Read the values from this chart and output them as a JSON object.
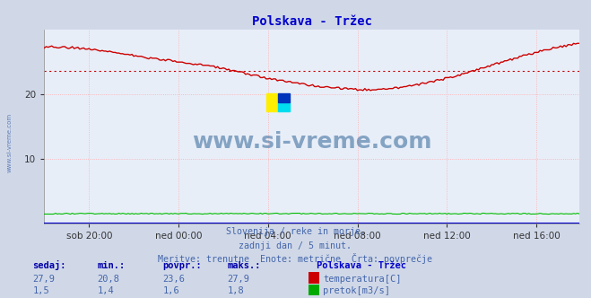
{
  "title": "Polskava - Tržec",
  "title_color": "#0000cc",
  "bg_color": "#d0d8e8",
  "plot_bg_color": "#e8eef8",
  "grid_color": "#ffaaaa",
  "xlabel_ticks": [
    "sob 20:00",
    "ned 00:00",
    "ned 04:00",
    "ned 08:00",
    "ned 12:00",
    "ned 16:00"
  ],
  "ylabel_ticks": [
    10,
    20
  ],
  "ylim": [
    0,
    30
  ],
  "temp_avg": 23.6,
  "temp_color": "#cc0000",
  "flow_color": "#00bb00",
  "avg_line_color": "#cc0000",
  "avg_line_style": "dotted",
  "blue_baseline_color": "#0000cc",
  "watermark_text": "www.si-vreme.com",
  "watermark_color": "#336699",
  "footer_lines": [
    "Slovenija / reke in morje.",
    "zadnji dan / 5 minut.",
    "Meritve: trenutne  Enote: metrične  Črta: povprečje"
  ],
  "footer_color": "#4466aa",
  "legend_title": "Polskava - Tržec",
  "legend_title_color": "#0000cc",
  "legend_items": [
    {
      "label": "temperatura[C]",
      "color": "#cc0000"
    },
    {
      "label": "pretok[m3/s]",
      "color": "#00aa00"
    }
  ],
  "stats_headers": [
    "sedaj:",
    "min.:",
    "povpr.:",
    "maks.:"
  ],
  "stats_temp": [
    "27,9",
    "20,8",
    "23,6",
    "27,9"
  ],
  "stats_flow": [
    "1,5",
    "1,4",
    "1,6",
    "1,8"
  ],
  "stats_color": "#4466aa",
  "stats_header_color": "#0000aa",
  "left_label_color": "#4466aa",
  "left_label_text": "www.si-vreme.com",
  "num_points": 288,
  "x_tick_positions": [
    24,
    72,
    120,
    168,
    216,
    264
  ],
  "xlim": [
    0,
    287
  ]
}
